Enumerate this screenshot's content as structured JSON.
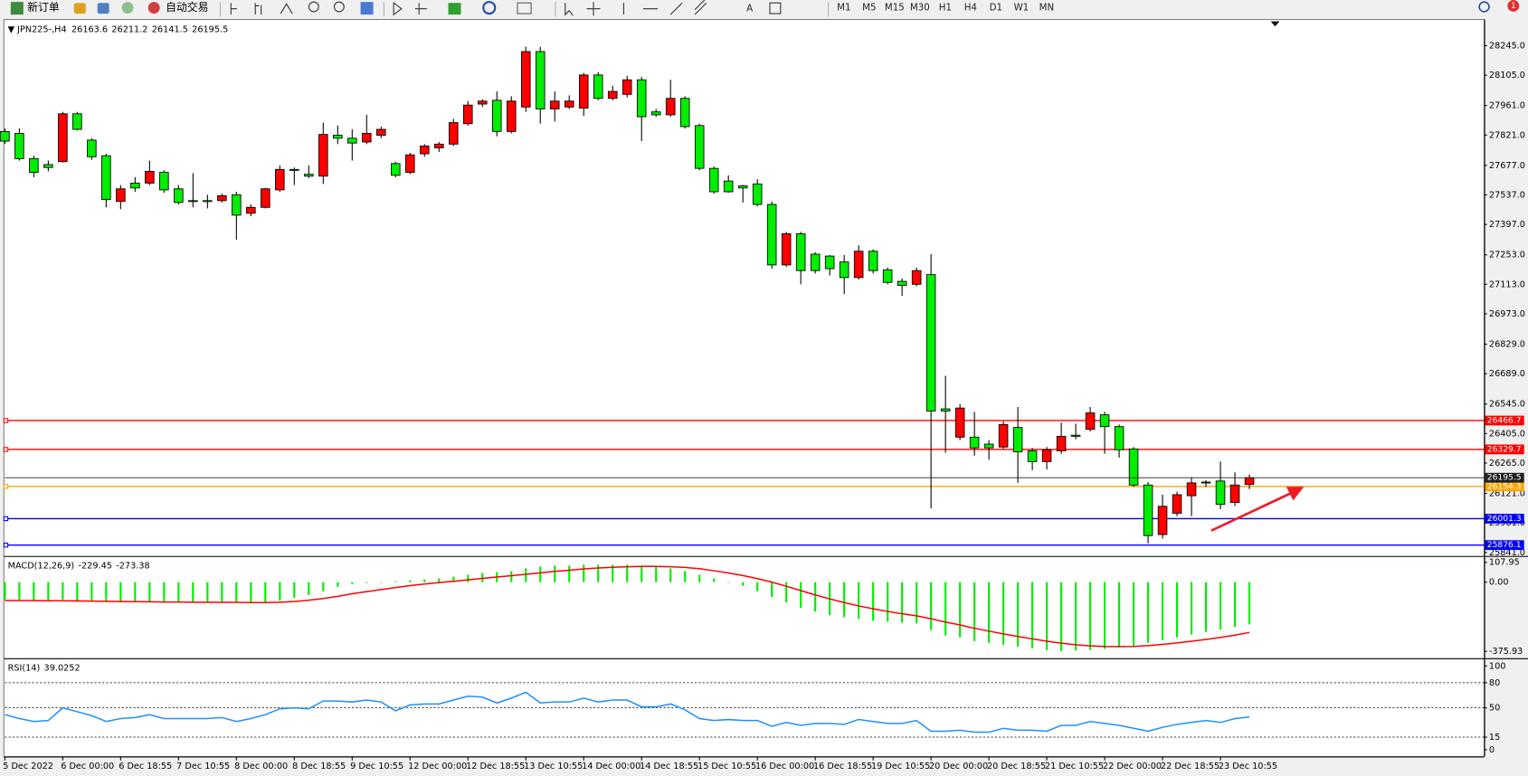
{
  "toolbar": {
    "new_order": "新订单",
    "auto_trading": "自动交易",
    "timeframes": [
      "M1",
      "M5",
      "M15",
      "M30",
      "H1",
      "H4",
      "D1",
      "W1",
      "MN"
    ],
    "notifications": 1
  },
  "chart_data": [
    {
      "type": "candlestick",
      "title": "JPN225-,H4",
      "up_color": "#ff0000",
      "down_color": "#00ee00",
      "bid_color": "#202020",
      "grid": false,
      "ylim": [
        25829,
        28360
      ],
      "yticks": [
        {
          "value": 28245,
          "label": "28245.0"
        },
        {
          "value": 28105,
          "label": "28105.0"
        },
        {
          "value": 27961,
          "label": "27961.0"
        },
        {
          "value": 27821,
          "label": "27821.0"
        },
        {
          "value": 27677,
          "label": "27677.0"
        },
        {
          "value": 27537,
          "label": "27537.0"
        },
        {
          "value": 27397,
          "label": "27397.0"
        },
        {
          "value": 27253,
          "label": "27253.0"
        },
        {
          "value": 27113,
          "label": "27113.0"
        },
        {
          "value": 26973,
          "label": "26973.0"
        },
        {
          "value": 26829,
          "label": "26829.0"
        },
        {
          "value": 26689,
          "label": "26689.0"
        },
        {
          "value": 26545,
          "label": "26545.0"
        },
        {
          "value": 26405,
          "label": "26405.0"
        },
        {
          "value": 26265,
          "label": "26265.0"
        },
        {
          "value": 26121,
          "label": "26121.0"
        },
        {
          "value": 25981,
          "label": "25981.0"
        },
        {
          "value": 25841,
          "label": "25841.0"
        }
      ],
      "lines": [
        {
          "value": 26466.7,
          "color": "#ff0000"
        },
        {
          "value": 26329.7,
          "color": "#ff0000"
        },
        {
          "value": 26154.3,
          "color": "#ffa500"
        },
        {
          "value": 26001.3,
          "color": "#0000ff"
        },
        {
          "value": 25876.1,
          "color": "#0000ff"
        }
      ],
      "categories": [
        "5 Dec 2022",
        null,
        null,
        null,
        "6 Dec 00:00",
        null,
        null,
        null,
        "6 Dec 18:55",
        null,
        null,
        null,
        "7 Dec 10:55",
        null,
        null,
        null,
        "8 Dec 00:00",
        null,
        null,
        null,
        "8 Dec 18:55",
        null,
        null,
        null,
        "9 Dec 10:55",
        null,
        null,
        null,
        "12 Dec 00:00",
        null,
        null,
        null,
        "12 Dec 18:55",
        null,
        null,
        null,
        "13 Dec 10:55",
        null,
        null,
        null,
        "14 Dec 00:00",
        null,
        null,
        null,
        "14 Dec 18:55",
        null,
        null,
        null,
        "15 Dec 10:55",
        null,
        null,
        null,
        "16 Dec 00:00",
        null,
        null,
        null,
        "16 Dec 18:55",
        null,
        null,
        null,
        "19 Dec 10:55",
        null,
        null,
        null,
        "20 Dec 00:00",
        null,
        null,
        null,
        "20 Dec 18:55",
        null,
        null,
        null,
        "21 Dec 10:55",
        null,
        null,
        null,
        "22 Dec 00:00",
        null,
        null,
        null,
        "22 Dec 18:55",
        null,
        null,
        null,
        "23 Dec 10:55",
        null,
        null
      ],
      "open": [
        27838,
        27829,
        27709,
        27681,
        27695,
        27922,
        27797,
        27723,
        27506,
        27593,
        27593,
        27644,
        27566,
        27510,
        27510,
        27510,
        27538,
        27450,
        27478,
        27561,
        27658,
        27635,
        27626,
        27820,
        27806,
        27788,
        27820,
        27686,
        27644,
        27732,
        27760,
        27778,
        27875,
        27968,
        27986,
        27838,
        27954,
        28217,
        27945,
        27954,
        27949,
        28106,
        27995,
        28014,
        28083,
        27931,
        27917,
        27995,
        27866,
        27663,
        27603,
        27580,
        27589,
        27492,
        27205,
        27353,
        27256,
        27247,
        27219,
        27145,
        27270,
        27182,
        27127,
        27113,
        27159,
        26522,
        26388,
        26388,
        26355,
        26341,
        26434,
        26323,
        26272,
        26323,
        26397,
        26425,
        26494,
        26438,
        26332,
        26161,
        25926,
        26027,
        26110,
        26175,
        26180,
        26078,
        26163.6
      ],
      "high": [
        27852,
        27852,
        27723,
        27700,
        27931,
        27931,
        27806,
        27732,
        27584,
        27621,
        27700,
        27654,
        27584,
        27640,
        27538,
        27543,
        27552,
        27492,
        27570,
        27677,
        27667,
        27677,
        27880,
        27866,
        27848,
        27917,
        27861,
        27695,
        27737,
        27778,
        27788,
        27898,
        27982,
        27991,
        28028,
        28005,
        28240,
        28240,
        28028,
        28009,
        28116,
        28120,
        28055,
        28102,
        28097,
        27945,
        28083,
        28005,
        27875,
        27672,
        27630,
        27584,
        27612,
        27506,
        27362,
        27362,
        27265,
        27252,
        27252,
        27298,
        27279,
        27192,
        27141,
        27192,
        27256,
        26679,
        26545,
        26508,
        26374,
        26462,
        26531,
        26337,
        26341,
        26457,
        26452,
        26531,
        26508,
        26448,
        26341,
        26175,
        26115,
        26129,
        26198,
        26184,
        26272,
        26221,
        26211.2
      ],
      "low": [
        27778,
        27700,
        27621,
        27649,
        27691,
        27843,
        27704,
        27478,
        27469,
        27552,
        27584,
        27547,
        27492,
        27478,
        27473,
        27501,
        27325,
        27436,
        27473,
        27552,
        27584,
        27617,
        27589,
        27778,
        27700,
        27778,
        27806,
        27621,
        27635,
        27718,
        27741,
        27769,
        27866,
        27954,
        27815,
        27829,
        27931,
        27875,
        27885,
        27945,
        27912,
        27986,
        27986,
        28000,
        27792,
        27908,
        27908,
        27852,
        27654,
        27543,
        27547,
        27501,
        27483,
        27187,
        27196,
        27113,
        27164,
        27155,
        27067,
        27136,
        27164,
        27113,
        27058,
        27104,
        26050,
        26314,
        26374,
        26300,
        26281,
        26332,
        26171,
        26231,
        26235,
        26309,
        26378,
        26415,
        26309,
        26291,
        26152,
        25884,
        25907,
        26013,
        26013,
        26152,
        26046,
        26061,
        26141.5
      ],
      "close": [
        27792,
        27709,
        27644,
        27667,
        27922,
        27848,
        27718,
        27515,
        27566,
        27570,
        27649,
        27561,
        27501,
        27506,
        27506,
        27533,
        27441,
        27478,
        27566,
        27658,
        27654,
        27626,
        27824,
        27806,
        27783,
        27829,
        27848,
        27630,
        27727,
        27769,
        27778,
        27880,
        27963,
        27982,
        27838,
        27982,
        28217,
        27945,
        27982,
        27982,
        28106,
        27995,
        28028,
        28083,
        27908,
        27917,
        27995,
        27861,
        27663,
        27552,
        27552,
        27570,
        27492,
        27205,
        27353,
        27178,
        27178,
        27187,
        27145,
        27270,
        27178,
        27122,
        27108,
        27178,
        26512,
        26512,
        26526,
        26337,
        26337,
        26448,
        26318,
        26272,
        26328,
        26392,
        26392,
        26503,
        26438,
        26328,
        26161,
        25921,
        26060,
        26115,
        26171,
        26171,
        26069,
        26161,
        26195.5
      ]
    },
    {
      "type": "macd",
      "title": "MACD(12,26,9)",
      "ylim": [
        -408,
        132
      ],
      "yticks": [
        107.95,
        {
          "value": 0,
          "label": "0.00"
        },
        -375.93
      ],
      "series": [
        {
          "style": "histogram",
          "color": "#00ee00",
          "values": [
            -95,
            -95,
            -100,
            -100,
            -95,
            -100,
            -100,
            -105,
            -110,
            -110,
            -110,
            -110,
            -110,
            -110,
            -110,
            -110,
            -110,
            -115,
            -110,
            -100,
            -85,
            -70,
            -50,
            -25,
            -10,
            -5,
            0,
            5,
            10,
            15,
            20,
            30,
            40,
            50,
            55,
            60,
            75,
            85,
            90,
            90,
            95,
            95,
            95,
            95,
            90,
            85,
            75,
            60,
            40,
            20,
            0,
            -20,
            -50,
            -80,
            -110,
            -140,
            -160,
            -180,
            -190,
            -200,
            -210,
            -215,
            -220,
            -225,
            -260,
            -290,
            -300,
            -320,
            -330,
            -340,
            -350,
            -360,
            -370,
            -375,
            -372,
            -368,
            -362,
            -355,
            -345,
            -330,
            -315,
            -300,
            -285,
            -270,
            -258,
            -244,
            -229.45
          ]
        },
        {
          "style": "line",
          "color": "#ff0000",
          "values": [
            -100,
            -100,
            -100,
            -101,
            -101,
            -102,
            -103,
            -104,
            -105,
            -106,
            -107,
            -108,
            -108,
            -109,
            -109,
            -110,
            -110,
            -111,
            -111,
            -109,
            -105,
            -98,
            -89,
            -77,
            -63,
            -51,
            -40,
            -29,
            -19,
            -10,
            -2,
            5,
            13,
            21,
            28,
            35,
            43,
            51,
            59,
            65,
            72,
            77,
            81,
            84,
            86,
            86,
            84,
            80,
            73,
            62,
            50,
            36,
            19,
            0,
            -22,
            -46,
            -69,
            -91,
            -111,
            -129,
            -145,
            -159,
            -172,
            -183,
            -199,
            -217,
            -233,
            -251,
            -266,
            -281,
            -295,
            -308,
            -321,
            -332,
            -340,
            -346,
            -349,
            -350,
            -349,
            -345,
            -338,
            -330,
            -321,
            -311,
            -300,
            -288,
            -273.38
          ]
        }
      ]
    },
    {
      "type": "line",
      "title": "RSI(14)",
      "grid": "dashed",
      "ylim": [
        0,
        100
      ],
      "yticks": [
        100,
        80,
        50,
        15,
        0
      ],
      "series": [
        {
          "color": "#1e90ff",
          "values": [
            41.9,
            37.2,
            33.7,
            34.9,
            50,
            45.3,
            40.7,
            33.7,
            37.2,
            38.4,
            41.9,
            37.2,
            37.2,
            37.2,
            37.2,
            38.4,
            33.7,
            37.2,
            41.9,
            48.8,
            50,
            48.8,
            58.1,
            58.1,
            57,
            59.3,
            57,
            46.5,
            53.5,
            54.7,
            54.7,
            59.3,
            64,
            62.8,
            55.8,
            61.6,
            68.6,
            55.8,
            57,
            57,
            61.6,
            57,
            59.3,
            59.3,
            51.2,
            51.2,
            54.7,
            47.7,
            37.2,
            34.9,
            36,
            34.9,
            34.9,
            27.9,
            32.6,
            29.1,
            31.4,
            31.4,
            30.2,
            36,
            33.7,
            31.4,
            31.4,
            34.9,
            22.1,
            22.1,
            23.3,
            20.9,
            20.9,
            25.6,
            23.3,
            23.3,
            22.1,
            29.1,
            29.1,
            33.7,
            31.4,
            29.1,
            25.6,
            22.1,
            26.7,
            30.2,
            32.6,
            34.9,
            32.6,
            37.2,
            39.0252
          ]
        }
      ]
    }
  ]
}
